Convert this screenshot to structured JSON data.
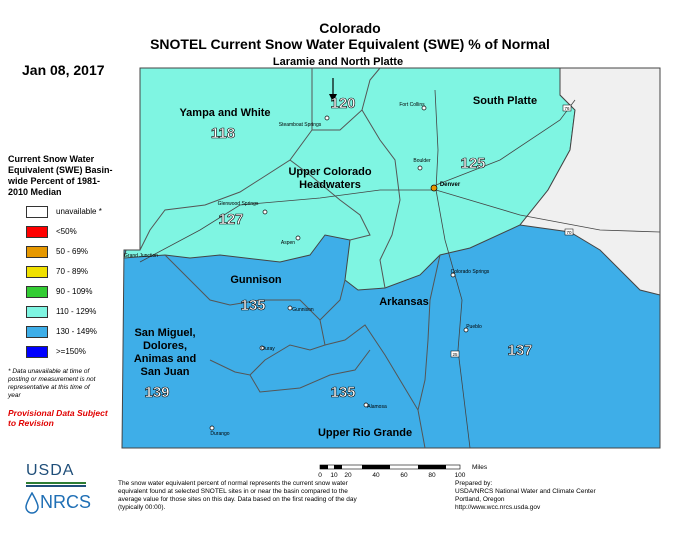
{
  "title": "Colorado",
  "subtitle": "SNOTEL Current Snow Water Equivalent (SWE) % of Normal",
  "date": "Jan 08, 2017",
  "legend": {
    "title": "Current Snow Water Equivalent (SWE) Basin-wide Percent of 1981-2010 Median",
    "items": [
      {
        "label": "unavailable *",
        "color": "#ffffff"
      },
      {
        "label": "<50%",
        "color": "#ff0000"
      },
      {
        "label": "50 - 69%",
        "color": "#e69800"
      },
      {
        "label": "70 - 89%",
        "color": "#f0e000"
      },
      {
        "label": "90 - 109%",
        "color": "#33cc33"
      },
      {
        "label": "110 - 129%",
        "color": "#7ff5e2"
      },
      {
        "label": "130 - 149%",
        "color": "#3eaee8"
      },
      {
        "label": ">=150%",
        "color": "#0000ff"
      }
    ]
  },
  "note": "* Data unavailable at time of posting or measurement is not representative at this time of year",
  "provisional": "Provisional Data Subject to Revision",
  "basins": [
    {
      "name": "Laramie and North Platte",
      "value": "120"
    },
    {
      "name": "Yampa and White",
      "value": "118"
    },
    {
      "name": "South Platte",
      "value": "125"
    },
    {
      "name": "Upper Colorado Headwaters",
      "value": "127"
    },
    {
      "name": "Gunnison",
      "value": "135"
    },
    {
      "name": "Arkansas",
      "value": "137"
    },
    {
      "name": "San Miguel, Dolores, Animas and San Juan",
      "value": "139"
    },
    {
      "name": "Upper Rio Grande",
      "value": "135"
    }
  ],
  "basin_labels": {
    "laramie": "Laramie and North Platte",
    "yampa": "Yampa and White",
    "south_platte": "South Platte",
    "upper_colorado_1": "Upper Colorado",
    "upper_colorado_2": "Headwaters",
    "gunnison": "Gunnison",
    "arkansas": "Arkansas",
    "sanmiguel_1": "San Miguel,",
    "sanmiguel_2": "Dolores,",
    "sanmiguel_3": "Animas and",
    "sanmiguel_4": "San Juan",
    "rio_grande": "Upper Rio Grande"
  },
  "cities": {
    "fort_collins": "Fort Collins",
    "steamboat": "Steamboat Springs",
    "boulder": "Boulder",
    "denver": "Denver",
    "glenwood": "Glenwood Springs",
    "aspen": "Aspen",
    "grand_junction": "Grand Junction",
    "colorado_springs": "Colorado Springs",
    "gunnison": "Gunnison",
    "pueblo": "Pueblo",
    "ouray": "Ouray",
    "alamosa": "Alamosa",
    "durango": "Durango"
  },
  "highways": {
    "i25": "25",
    "i70": "70",
    "i76": "76"
  },
  "scale": {
    "unit": "Miles",
    "ticks": [
      "0",
      "10",
      "20",
      "40",
      "60",
      "80",
      "100"
    ]
  },
  "footer": "The snow water equivalent percent of normal represents the current snow water equivalent found at selected SNOTEL sites in or near the basin compared to the average value for those sites on this day. Data based on the first reading of the day (typically 00:00).",
  "prepared_by": [
    "Prepared by:",
    "USDA/NRCS National Water and Climate Center",
    "Portland, Oregon",
    "http://www.wcc.nrcs.usda.gov"
  ],
  "logos": {
    "usda": "USDA",
    "nrcs": "NRCS"
  },
  "colors": {
    "teal": "#7ff5e2",
    "blue": "#3eaee8",
    "unavailable": "#f0f0f0"
  }
}
